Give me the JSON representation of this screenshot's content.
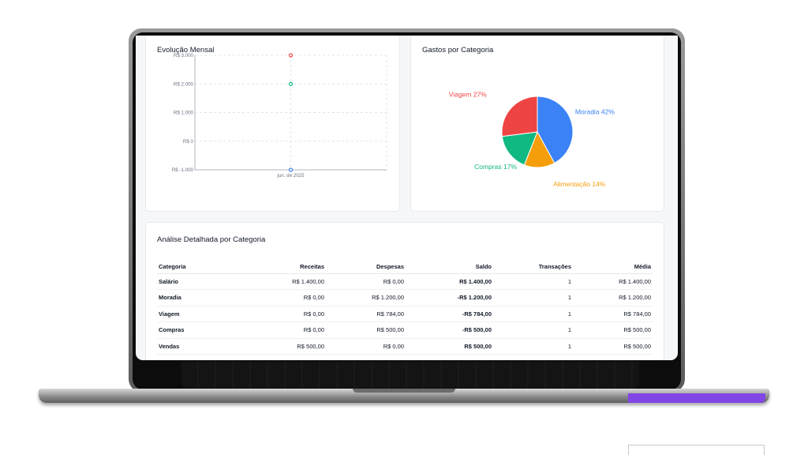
{
  "line_card": {
    "title": "Evolução Mensal"
  },
  "pie_card": {
    "title": "Gastos por Categoria"
  },
  "table_card": {
    "title": "Análise Detalhada por Categoria",
    "columns": [
      "Categoria",
      "Receitas",
      "Despesas",
      "Saldo",
      "Transações",
      "Média"
    ],
    "rows": [
      {
        "categoria": "Salário",
        "receitas": "R$ 1.400,00",
        "despesas": "R$ 0,00",
        "saldo": "R$ 1.400,00",
        "saldo_sign": "pos",
        "transacoes": "1",
        "media": "R$ 1.400,00"
      },
      {
        "categoria": "Moradia",
        "receitas": "R$ 0,00",
        "despesas": "R$ 1.200,00",
        "saldo": "-R$ 1.200,00",
        "saldo_sign": "neg",
        "transacoes": "1",
        "media": "R$ 1.200,00"
      },
      {
        "categoria": "Viagem",
        "receitas": "R$ 0,00",
        "despesas": "R$ 784,00",
        "saldo": "-R$ 784,00",
        "saldo_sign": "neg",
        "transacoes": "1",
        "media": "R$ 784,00"
      },
      {
        "categoria": "Compras",
        "receitas": "R$ 0,00",
        "despesas": "R$ 500,00",
        "saldo": "-R$ 500,00",
        "saldo_sign": "neg",
        "transacoes": "1",
        "media": "R$ 500,00"
      },
      {
        "categoria": "Vendas",
        "receitas": "R$ 500,00",
        "despesas": "R$ 0,00",
        "saldo": "R$ 500,00",
        "saldo_sign": "pos",
        "transacoes": "1",
        "media": "R$ 500,00"
      }
    ]
  },
  "colors": {
    "positive": "#16a34a",
    "negative": "#dc2626",
    "accent": "#8146e6"
  },
  "chart_data": [
    {
      "type": "line",
      "title": "Evolução Mensal",
      "categories": [
        "jun. de 2025"
      ],
      "y_ticks": [
        "R$ -1.000",
        "R$ 0",
        "R$ 1.000",
        "R$ 2.000",
        "R$ 3.000"
      ],
      "ylim": [
        -1000,
        3000
      ],
      "grid": true,
      "series": [
        {
          "values": [
            3000
          ],
          "color": "#ef4444"
        },
        {
          "values": [
            2000
          ],
          "color": "#10b981"
        },
        {
          "values": [
            -1000
          ],
          "color": "#3b82f6"
        }
      ]
    },
    {
      "type": "pie",
      "title": "Gastos por Categoria",
      "slices": [
        {
          "label": "Moradia",
          "value": 42,
          "display": "Moradia 42%",
          "color": "#3b82f6"
        },
        {
          "label": "Alimentação",
          "value": 14,
          "display": "Alimentação 14%",
          "color": "#f59e0b"
        },
        {
          "label": "Compras",
          "value": 17,
          "display": "Compras 17%",
          "color": "#10b981"
        },
        {
          "label": "Viagem",
          "value": 27,
          "display": "Viagem 27%",
          "color": "#ef4444"
        }
      ]
    }
  ]
}
